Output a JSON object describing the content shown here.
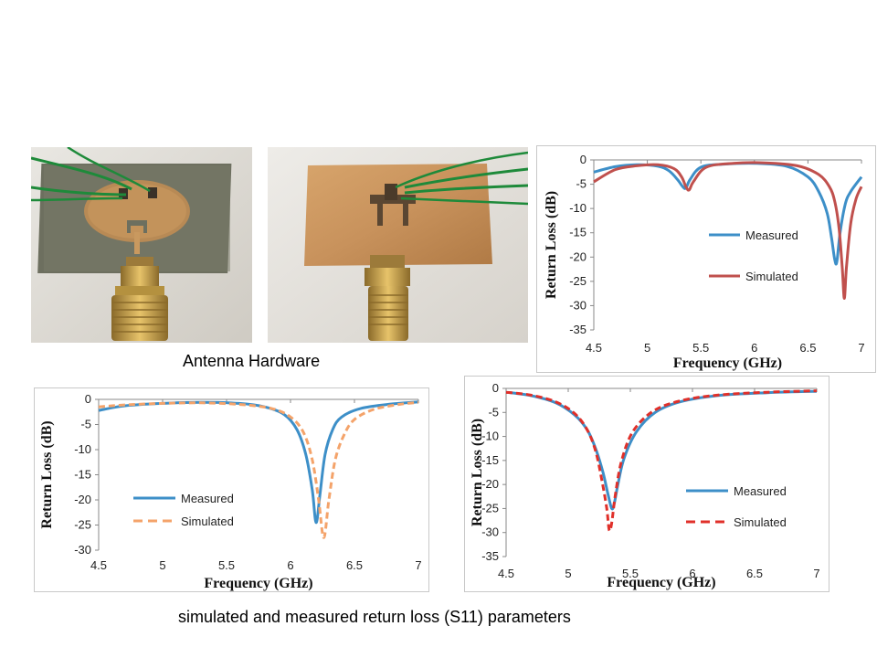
{
  "captions": {
    "hardware": "Antenna Hardware",
    "bottom": "simulated and measured return loss (S11) parameters"
  },
  "colors": {
    "measured": "#3d8fc8",
    "simulated_top": "#c0504d",
    "simulated_left": "#f4a36a",
    "simulated_right": "#e0302a",
    "board_green": "#6d6f5f",
    "board_copper": "#c8925c"
  },
  "chart_data": [
    {
      "type": "line",
      "xlabel": "Frequency (GHz)",
      "ylabel": "Return Loss (dB)",
      "xlim": [
        4.5,
        7
      ],
      "ylim": [
        -35,
        0
      ],
      "xticks": [
        "4.5",
        "5",
        "5.5",
        "6",
        "6.5",
        "7"
      ],
      "yticks": [
        "0",
        "-5",
        "-10",
        "-15",
        "-20",
        "-25",
        "-30",
        "-35"
      ],
      "legend": "center-right",
      "series": [
        {
          "name": "Measured",
          "style": "solid",
          "x": [
            4.5,
            4.7,
            4.9,
            5.1,
            5.2,
            5.28,
            5.33,
            5.36,
            5.4,
            5.5,
            5.7,
            6.0,
            6.3,
            6.5,
            6.6,
            6.68,
            6.72,
            6.75,
            6.77,
            6.8,
            6.85,
            6.9,
            7.0
          ],
          "y": [
            -2.5,
            -1.4,
            -1.0,
            -1.3,
            -2.2,
            -4.0,
            -5.5,
            -5.8,
            -4.0,
            -1.5,
            -0.9,
            -0.7,
            -1.3,
            -3.5,
            -6.5,
            -11.0,
            -16.0,
            -20.5,
            -21.0,
            -15.0,
            -9.0,
            -6.5,
            -3.5
          ]
        },
        {
          "name": "Simulated",
          "style": "solid",
          "x": [
            4.5,
            4.7,
            4.9,
            5.1,
            5.25,
            5.32,
            5.36,
            5.39,
            5.43,
            5.55,
            5.8,
            6.1,
            6.4,
            6.6,
            6.7,
            6.75,
            6.79,
            6.82,
            6.84,
            6.86,
            6.9,
            6.95,
            7.0
          ],
          "y": [
            -4.5,
            -2.0,
            -1.2,
            -1.0,
            -1.8,
            -3.5,
            -5.5,
            -6.2,
            -4.5,
            -1.5,
            -0.7,
            -0.6,
            -1.2,
            -3.0,
            -5.5,
            -8.5,
            -14.0,
            -22.0,
            -28.5,
            -22.0,
            -13.0,
            -8.0,
            -5.5
          ]
        }
      ]
    },
    {
      "type": "line",
      "xlabel": "Frequency (GHz)",
      "ylabel": "Return Loss (dB)",
      "xlim": [
        4.5,
        7
      ],
      "ylim": [
        -30,
        0
      ],
      "xticks": [
        "4.5",
        "5",
        "5.5",
        "6",
        "6.5",
        "7"
      ],
      "yticks": [
        "0",
        "-5",
        "-10",
        "-15",
        "-20",
        "-25",
        "-30"
      ],
      "legend": "bottom-left",
      "series": [
        {
          "name": "Measured",
          "style": "solid",
          "x": [
            4.5,
            4.7,
            5.0,
            5.3,
            5.6,
            5.8,
            5.95,
            6.05,
            6.12,
            6.17,
            6.2,
            6.23,
            6.27,
            6.33,
            6.4,
            6.55,
            6.8,
            7.0
          ],
          "y": [
            -2.2,
            -1.3,
            -0.8,
            -0.6,
            -0.8,
            -1.5,
            -3.0,
            -6.0,
            -11.0,
            -18.0,
            -24.5,
            -19.0,
            -11.0,
            -6.0,
            -3.5,
            -1.8,
            -0.9,
            -0.5
          ]
        },
        {
          "name": "Simulated",
          "style": "dashed",
          "x": [
            4.5,
            4.7,
            5.0,
            5.3,
            5.6,
            5.85,
            6.0,
            6.1,
            6.17,
            6.22,
            6.26,
            6.3,
            6.35,
            6.42,
            6.5,
            6.65,
            6.85,
            7.0
          ],
          "y": [
            -1.5,
            -1.1,
            -0.8,
            -0.7,
            -1.0,
            -1.8,
            -3.5,
            -6.5,
            -12.0,
            -20.0,
            -27.5,
            -20.0,
            -12.0,
            -7.0,
            -4.0,
            -2.0,
            -1.0,
            -0.6
          ]
        }
      ]
    },
    {
      "type": "line",
      "xlabel": "Frequency (GHz)",
      "ylabel": "Return Loss (dB)",
      "xlim": [
        4.5,
        7
      ],
      "ylim": [
        -35,
        0
      ],
      "xticks": [
        "4.5",
        "5",
        "5.5",
        "6",
        "6.5",
        "7"
      ],
      "yticks": [
        "0",
        "-5",
        "-10",
        "-15",
        "-20",
        "-25",
        "-30",
        "-35"
      ],
      "legend": "center-right",
      "series": [
        {
          "name": "Measured",
          "style": "solid",
          "x": [
            4.5,
            4.7,
            4.9,
            5.05,
            5.15,
            5.22,
            5.28,
            5.32,
            5.35,
            5.37,
            5.4,
            5.45,
            5.55,
            5.7,
            5.9,
            6.2,
            6.6,
            7.0
          ],
          "y": [
            -0.8,
            -1.5,
            -3.0,
            -5.5,
            -8.5,
            -12.5,
            -17.5,
            -22.0,
            -25.0,
            -24.0,
            -20.0,
            -14.5,
            -9.0,
            -5.0,
            -2.8,
            -1.5,
            -0.9,
            -0.6
          ]
        },
        {
          "name": "Simulated",
          "style": "dashed",
          "x": [
            4.5,
            4.7,
            4.9,
            5.05,
            5.15,
            5.22,
            5.27,
            5.31,
            5.33,
            5.35,
            5.38,
            5.43,
            5.52,
            5.68,
            5.9,
            6.2,
            6.6,
            7.0
          ],
          "y": [
            -0.8,
            -1.4,
            -2.8,
            -5.2,
            -8.5,
            -13.0,
            -19.0,
            -25.0,
            -29.5,
            -28.0,
            -22.0,
            -15.0,
            -9.0,
            -4.8,
            -2.6,
            -1.4,
            -0.8,
            -0.5
          ]
        }
      ]
    }
  ]
}
